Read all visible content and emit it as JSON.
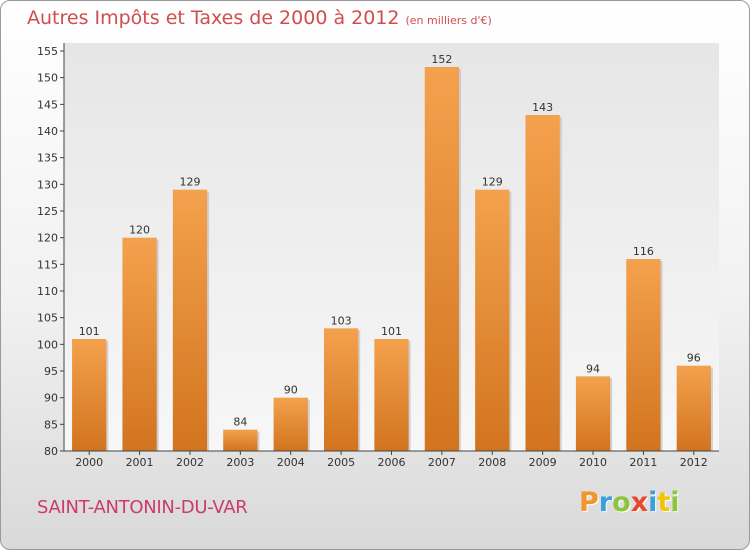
{
  "chart_data": {
    "type": "bar",
    "title": "Autres Impôts et Taxes de 2000 à 2012",
    "subtitle": "(en milliers d'€)",
    "categories": [
      "2000",
      "2001",
      "2002",
      "2003",
      "2004",
      "2005",
      "2006",
      "2007",
      "2008",
      "2009",
      "2010",
      "2011",
      "2012"
    ],
    "values": [
      101,
      120,
      129,
      84,
      90,
      103,
      101,
      152,
      129,
      143,
      94,
      116,
      96
    ],
    "ylim": [
      80,
      155
    ],
    "yticks": [
      80,
      85,
      90,
      95,
      100,
      105,
      110,
      115,
      120,
      125,
      130,
      135,
      140,
      145,
      150,
      155
    ],
    "grid": false,
    "bar_color": "#f4a14d",
    "bar_color_dark": "#d2741f"
  },
  "place_name": "SAINT-ANTONIN-DU-VAR",
  "logo": {
    "letters": [
      "P",
      "r",
      "o",
      "x",
      "i",
      "t",
      "i"
    ],
    "colors": [
      "#f0962c",
      "#3aa0dc",
      "#8cc63e",
      "#e8482f",
      "#3aa0dc",
      "#f5c400",
      "#8cc63e"
    ]
  }
}
